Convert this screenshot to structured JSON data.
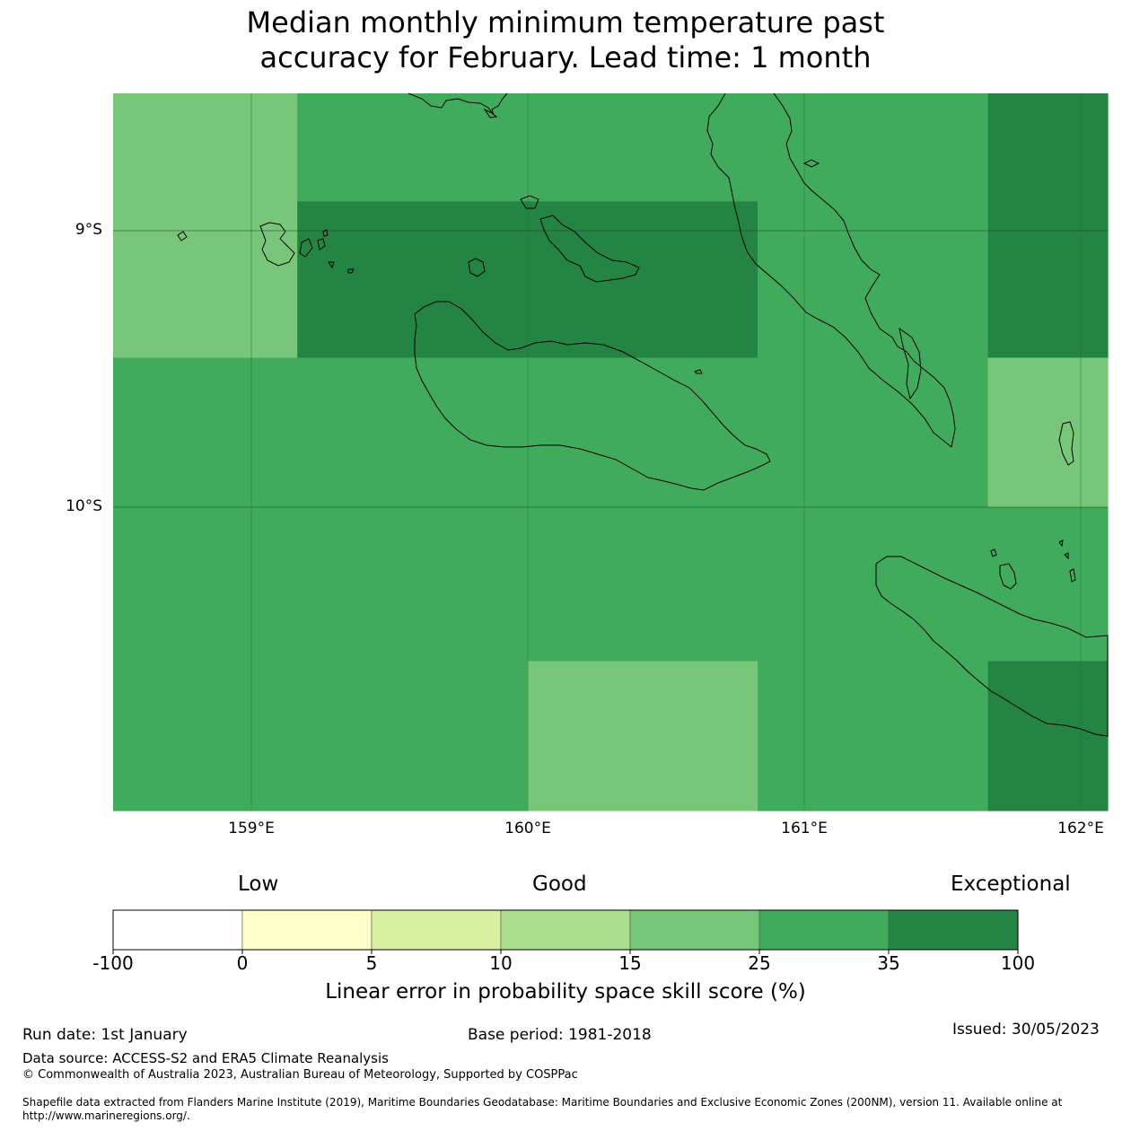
{
  "title": {
    "line1": "Median monthly minimum temperature past",
    "line2": "accuracy for February. Lead time: 1 month"
  },
  "map": {
    "lat_labels": [
      "9°S",
      "10°S"
    ],
    "lon_labels": [
      "159°E",
      "160°E",
      "161°E",
      "162°E"
    ],
    "extent": {
      "lon_min": 158.5,
      "lon_max": 162.1,
      "lat_top": -8.5,
      "lat_bottom": -11.1
    },
    "grid_cells": [
      {
        "lon0": 158.5,
        "lon1": 159.1667,
        "lat0": -8.5,
        "lat1": -9.4583,
        "class": 4
      },
      {
        "lon0": 159.1667,
        "lon1": 161.6667,
        "lat0": -8.5,
        "lat1": -8.8917,
        "class": 5
      },
      {
        "lon0": 159.1667,
        "lon1": 160.8333,
        "lat0": -8.8917,
        "lat1": -9.4583,
        "class": 6
      },
      {
        "lon0": 160.8333,
        "lon1": 161.6667,
        "lat0": -8.8917,
        "lat1": -9.4583,
        "class": 5
      },
      {
        "lon0": 161.6667,
        "lon1": 162.1,
        "lat0": -8.5,
        "lat1": -9.4583,
        "class": 6
      },
      {
        "lon0": 158.5,
        "lon1": 161.6667,
        "lat0": -9.4583,
        "lat1": -10.0,
        "class": 5
      },
      {
        "lon0": 161.6667,
        "lon1": 162.1,
        "lat0": -9.4583,
        "lat1": -10.0,
        "class": 4
      },
      {
        "lon0": 158.5,
        "lon1": 162.1,
        "lat0": -10.0,
        "lat1": -10.5583,
        "class": 5
      },
      {
        "lon0": 158.5,
        "lon1": 160.0,
        "lat0": -10.5583,
        "lat1": -11.1,
        "class": 5
      },
      {
        "lon0": 160.0,
        "lon1": 160.8333,
        "lat0": -10.5583,
        "lat1": -11.1,
        "class": 4
      },
      {
        "lon0": 160.8333,
        "lon1": 161.6667,
        "lat0": -10.5583,
        "lat1": -11.1,
        "class": 5
      },
      {
        "lon0": 161.6667,
        "lon1": 162.1,
        "lat0": -10.5583,
        "lat1": -11.1,
        "class": 6
      }
    ]
  },
  "colorbar": {
    "categories": [
      "Low",
      "Good",
      "Exceptional"
    ],
    "ticks": [
      "-100",
      "0",
      "5",
      "10",
      "15",
      "25",
      "35",
      "100"
    ],
    "colors": [
      "#ffffff",
      "#ffffcc",
      "#d9f0a3",
      "#addd8e",
      "#78c679",
      "#41ab5d",
      "#238443"
    ],
    "title": "Linear error in probability space skill score (%)"
  },
  "footer": {
    "run_date": "Run date: 1st January",
    "base_period": "Base period: 1981-2018",
    "issued": "Issued: 30/05/2023",
    "data_source": "Data source: ACCESS-S2 and ERA5 Climate Reanalysis",
    "copyright": "© Commonwealth of Australia 2023, Australian Bureau of Meteorology, Supported by COSPPac",
    "shapefile": "Shapefile data extracted from Flanders Marine Institute (2019), Maritime Boundaries Geodatabase: Maritime Boundaries and Exclusive Economic Zones (200NM), version 11. Available online at http://www.marineregions.org/."
  }
}
